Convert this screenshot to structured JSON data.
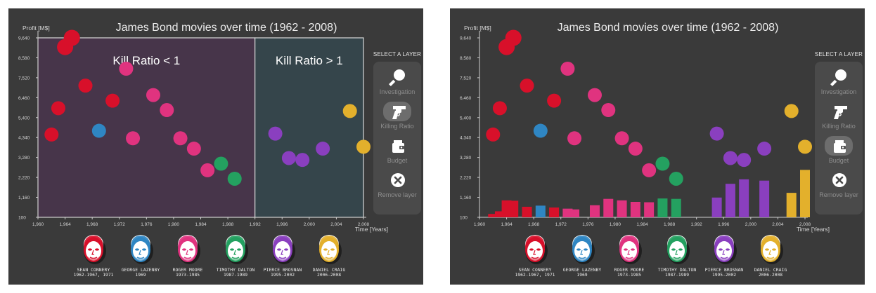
{
  "chart_data": [
    {
      "type": "scatter",
      "title": "James Bond movies over time (1962 - 2008)",
      "ylabel": "Profit [M$]",
      "xlabel": "Time [Years]",
      "xlim": [
        1960,
        2008
      ],
      "ylim": [
        100,
        9640
      ],
      "xticks": [
        "1,960",
        "1,964",
        "1,968",
        "1,972",
        "1,976",
        "1,980",
        "1,984",
        "1,988",
        "1,992",
        "1,996",
        "2,000",
        "2,004",
        "2,008"
      ],
      "yticks": [
        "100",
        "1,160",
        "2,220",
        "3,280",
        "4,340",
        "5,400",
        "6,460",
        "7,520",
        "8,580",
        "9,640"
      ],
      "regions": [
        {
          "label": "Kill Ratio < 1",
          "x_from": 1960,
          "x_to": 1992,
          "color": "#47354a"
        },
        {
          "label": "Kill Ratio > 1",
          "x_from": 1992,
          "x_to": 2008,
          "color": "#35454b"
        }
      ],
      "series": [
        {
          "name": "Sean Connery",
          "color": "#d8102a",
          "points": [
            [
              1962,
              4500
            ],
            [
              1963,
              5900
            ],
            [
              1964,
              9150
            ],
            [
              1965,
              9640
            ],
            [
              1967,
              7100
            ],
            [
              1971,
              6300
            ]
          ]
        },
        {
          "name": "George Lazenby",
          "color": "#2f86c3",
          "points": [
            [
              1969,
              4700
            ]
          ]
        },
        {
          "name": "Roger Moore",
          "color": "#e0337f",
          "points": [
            [
              1973,
              8000
            ],
            [
              1974,
              4300
            ],
            [
              1977,
              6600
            ],
            [
              1979,
              5800
            ],
            [
              1981,
              4300
            ],
            [
              1983,
              3750
            ],
            [
              1985,
              2600
            ]
          ]
        },
        {
          "name": "Timothy Dalton",
          "color": "#24a160",
          "points": [
            [
              1987,
              2950
            ],
            [
              1989,
              2150
            ]
          ]
        },
        {
          "name": "Pierce Brosnan",
          "color": "#8a3fbf",
          "points": [
            [
              1995,
              4550
            ],
            [
              1997,
              3250
            ],
            [
              1999,
              3150
            ],
            [
              2002,
              3750
            ]
          ]
        },
        {
          "name": "Daniel Craig",
          "color": "#e3b02c",
          "points": [
            [
              2006,
              5750
            ],
            [
              2008,
              3850
            ]
          ]
        }
      ]
    },
    {
      "type": "scatter",
      "title": "James Bond movies over time (1962 - 2008)",
      "ylabel": "Profit [M$]",
      "xlabel": "Time [Years]",
      "xlim": [
        1960,
        2008
      ],
      "ylim": [
        100,
        9640
      ],
      "xticks": [
        "1,960",
        "1,964",
        "1,968",
        "1,972",
        "1,976",
        "1,980",
        "1,984",
        "1,988",
        "1,992",
        "1,996",
        "2,000",
        "2,004",
        "2,008"
      ],
      "yticks": [
        "100",
        "1,160",
        "2,220",
        "3,280",
        "4,340",
        "5,400",
        "6,460",
        "7,520",
        "8,580",
        "9,640"
      ],
      "series": [
        {
          "name": "Sean Connery",
          "color": "#d8102a",
          "points": [
            [
              1962,
              4500
            ],
            [
              1963,
              5900
            ],
            [
              1964,
              9150
            ],
            [
              1965,
              9640
            ],
            [
              1967,
              7100
            ],
            [
              1971,
              6300
            ]
          ],
          "bars": [
            [
              1962,
              180
            ],
            [
              1963,
              320
            ],
            [
              1964,
              900
            ],
            [
              1965,
              880
            ],
            [
              1967,
              560
            ],
            [
              1971,
              520
            ]
          ]
        },
        {
          "name": "George Lazenby",
          "color": "#2f86c3",
          "points": [
            [
              1969,
              4700
            ]
          ],
          "bars": [
            [
              1969,
              620
            ]
          ]
        },
        {
          "name": "Roger Moore",
          "color": "#e0337f",
          "points": [
            [
              1973,
              8000
            ],
            [
              1974,
              4300
            ],
            [
              1977,
              6600
            ],
            [
              1979,
              5800
            ],
            [
              1981,
              4300
            ],
            [
              1983,
              3750
            ],
            [
              1985,
              2600
            ]
          ],
          "bars": [
            [
              1973,
              460
            ],
            [
              1974,
              420
            ],
            [
              1977,
              640
            ],
            [
              1979,
              980
            ],
            [
              1981,
              900
            ],
            [
              1983,
              820
            ],
            [
              1985,
              800
            ]
          ]
        },
        {
          "name": "Timothy Dalton",
          "color": "#24a160",
          "points": [
            [
              1987,
              2950
            ],
            [
              1989,
              2150
            ]
          ],
          "bars": [
            [
              1987,
              1000
            ],
            [
              1989,
              980
            ]
          ]
        },
        {
          "name": "Pierce Brosnan",
          "color": "#8a3fbf",
          "points": [
            [
              1995,
              4550
            ],
            [
              1997,
              3250
            ],
            [
              1999,
              3150
            ],
            [
              2002,
              3750
            ]
          ],
          "bars": [
            [
              1995,
              1050
            ],
            [
              1997,
              1780
            ],
            [
              1999,
              2020
            ],
            [
              2002,
              1950
            ]
          ]
        },
        {
          "name": "Daniel Craig",
          "color": "#e3b02c",
          "points": [
            [
              2006,
              5750
            ],
            [
              2008,
              3850
            ]
          ],
          "bars": [
            [
              2006,
              1300
            ],
            [
              2008,
              2520
            ]
          ]
        }
      ]
    }
  ],
  "menu": {
    "title": "SELECT A LAYER",
    "items": [
      {
        "label": "Investigation",
        "icon": "magnifier-icon"
      },
      {
        "label": "Killing Ratio",
        "icon": "revolver-icon"
      },
      {
        "label": "Budget",
        "icon": "wallet-icon"
      },
      {
        "label": "Remove layer",
        "icon": "close-icon"
      }
    ],
    "active_left": 1,
    "active_right": 2
  },
  "actors": [
    {
      "name": "SEAN CONNERY",
      "years": "1962-1967, 1971",
      "color": "#d8102a"
    },
    {
      "name": "GEORGE LAZENBY",
      "years": "1969",
      "color": "#2f86c3"
    },
    {
      "name": "ROGER MOORE",
      "years": "1973-1985",
      "color": "#e0337f"
    },
    {
      "name": "TIMOTHY DALTON",
      "years": "1987-1989",
      "color": "#24a160"
    },
    {
      "name": "PIERCE BROSNAN",
      "years": "1995-2002",
      "color": "#8a3fbf"
    },
    {
      "name": "DANIEL CRAIG",
      "years": "2006-2008",
      "color": "#e3b02c"
    }
  ]
}
